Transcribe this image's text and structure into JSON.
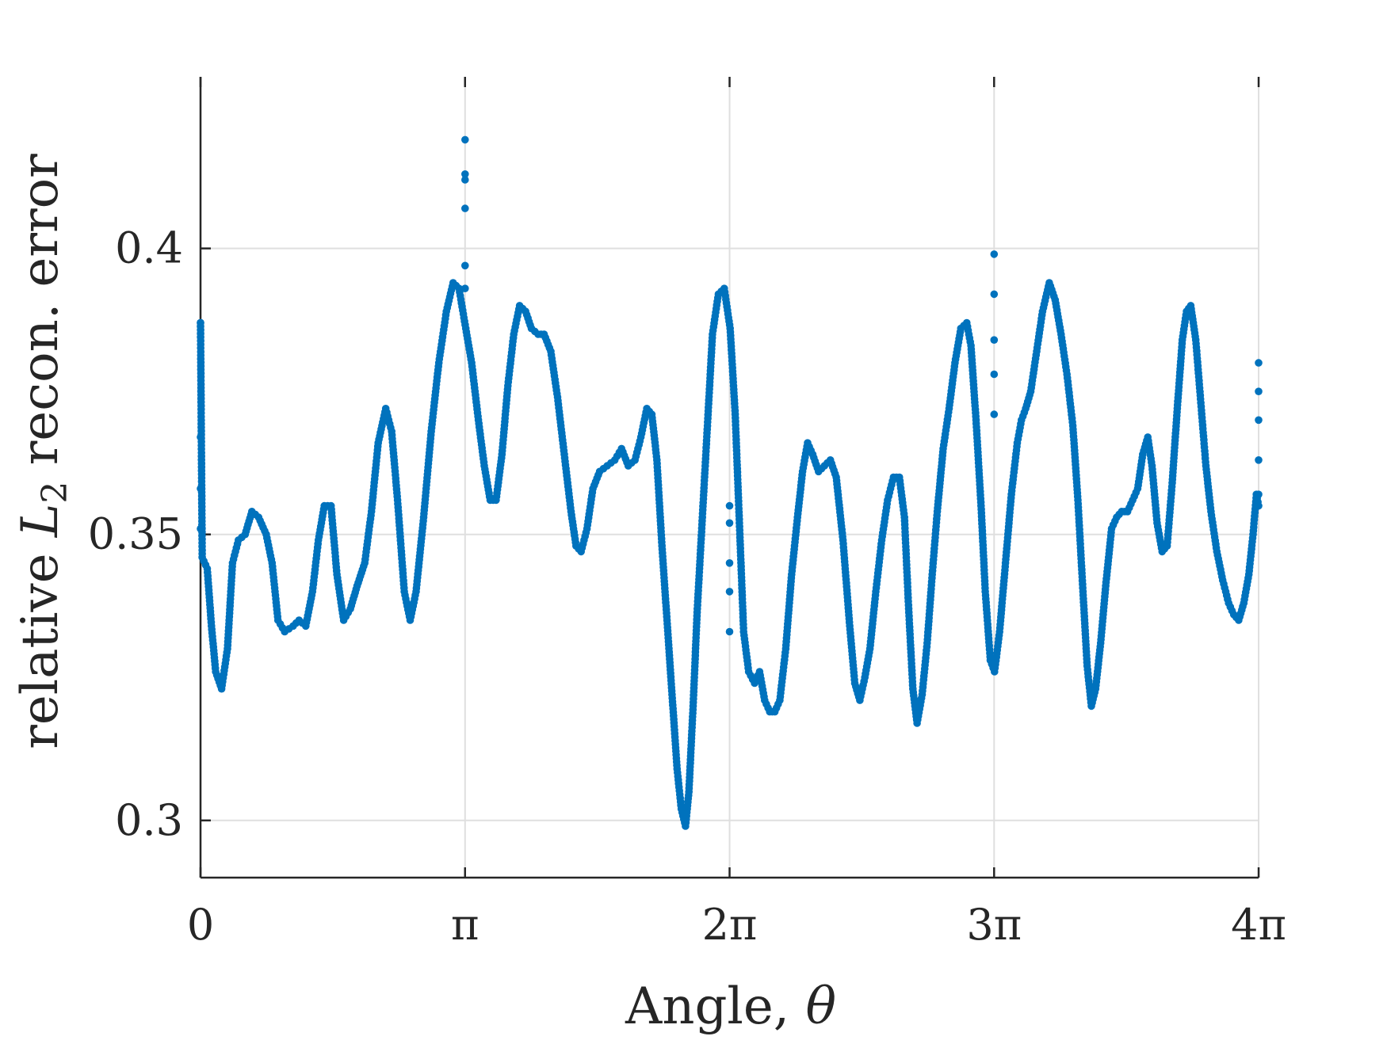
{
  "chart_data": {
    "type": "scatter",
    "xlabel": "Angle, θ",
    "ylabel": "relative L2 recon. error",
    "ylabel_parts": {
      "pre": "relative ",
      "var": "L",
      "sub": "2",
      "post": " recon. error"
    },
    "xlabel_parts": {
      "pre": "Angle, ",
      "var": "θ"
    },
    "xlim": [
      0,
      12.566
    ],
    "ylim": [
      0.29,
      0.43
    ],
    "xticks": [
      {
        "value": 0,
        "label": "0"
      },
      {
        "value": 3.1416,
        "label": "π"
      },
      {
        "value": 6.2832,
        "label": "2π"
      },
      {
        "value": 9.4248,
        "label": "3π"
      },
      {
        "value": 12.5664,
        "label": "4π"
      }
    ],
    "yticks": [
      {
        "value": 0.3,
        "label": "0.3"
      },
      {
        "value": 0.35,
        "label": "0.35"
      },
      {
        "value": 0.4,
        "label": "0.4"
      }
    ],
    "grid": true,
    "marker_color": "#0072BD",
    "series": [
      {
        "keypoints": [
          [
            0.0,
            0.387
          ],
          [
            0.02,
            0.346
          ],
          [
            0.08,
            0.344
          ],
          [
            0.13,
            0.334
          ],
          [
            0.18,
            0.326
          ],
          [
            0.25,
            0.323
          ],
          [
            0.32,
            0.33
          ],
          [
            0.38,
            0.345
          ],
          [
            0.45,
            0.349
          ],
          [
            0.53,
            0.35
          ],
          [
            0.61,
            0.354
          ],
          [
            0.69,
            0.353
          ],
          [
            0.78,
            0.35
          ],
          [
            0.85,
            0.345
          ],
          [
            0.92,
            0.335
          ],
          [
            1.0,
            0.333
          ],
          [
            1.1,
            0.334
          ],
          [
            1.17,
            0.335
          ],
          [
            1.25,
            0.334
          ],
          [
            1.33,
            0.34
          ],
          [
            1.4,
            0.349
          ],
          [
            1.47,
            0.355
          ],
          [
            1.55,
            0.355
          ],
          [
            1.62,
            0.343
          ],
          [
            1.7,
            0.335
          ],
          [
            1.78,
            0.337
          ],
          [
            1.86,
            0.341
          ],
          [
            1.95,
            0.345
          ],
          [
            2.03,
            0.354
          ],
          [
            2.11,
            0.366
          ],
          [
            2.2,
            0.372
          ],
          [
            2.27,
            0.368
          ],
          [
            2.34,
            0.356
          ],
          [
            2.42,
            0.34
          ],
          [
            2.49,
            0.335
          ],
          [
            2.56,
            0.34
          ],
          [
            2.65,
            0.353
          ],
          [
            2.74,
            0.368
          ],
          [
            2.83,
            0.38
          ],
          [
            2.92,
            0.389
          ],
          [
            3.0,
            0.394
          ],
          [
            3.07,
            0.393
          ],
          [
            3.15,
            0.386
          ],
          [
            3.22,
            0.38
          ],
          [
            3.3,
            0.37
          ],
          [
            3.37,
            0.362
          ],
          [
            3.44,
            0.356
          ],
          [
            3.51,
            0.356
          ],
          [
            3.58,
            0.364
          ],
          [
            3.65,
            0.376
          ],
          [
            3.72,
            0.385
          ],
          [
            3.79,
            0.39
          ],
          [
            3.86,
            0.389
          ],
          [
            3.93,
            0.386
          ],
          [
            4.01,
            0.385
          ],
          [
            4.08,
            0.385
          ],
          [
            4.16,
            0.382
          ],
          [
            4.24,
            0.374
          ],
          [
            4.32,
            0.364
          ],
          [
            4.4,
            0.354
          ],
          [
            4.46,
            0.348
          ],
          [
            4.52,
            0.347
          ],
          [
            4.59,
            0.351
          ],
          [
            4.66,
            0.358
          ],
          [
            4.74,
            0.361
          ],
          [
            4.83,
            0.362
          ],
          [
            4.92,
            0.363
          ],
          [
            5.0,
            0.365
          ],
          [
            5.08,
            0.362
          ],
          [
            5.16,
            0.363
          ],
          [
            5.23,
            0.367
          ],
          [
            5.3,
            0.372
          ],
          [
            5.36,
            0.371
          ],
          [
            5.42,
            0.363
          ],
          [
            5.48,
            0.348
          ],
          [
            5.54,
            0.335
          ],
          [
            5.6,
            0.322
          ],
          [
            5.66,
            0.309
          ],
          [
            5.71,
            0.302
          ],
          [
            5.76,
            0.299
          ],
          [
            5.8,
            0.305
          ],
          [
            5.85,
            0.32
          ],
          [
            5.9,
            0.337
          ],
          [
            5.96,
            0.353
          ],
          [
            6.02,
            0.369
          ],
          [
            6.08,
            0.385
          ],
          [
            6.15,
            0.392
          ],
          [
            6.22,
            0.393
          ],
          [
            6.29,
            0.386
          ],
          [
            6.35,
            0.371
          ],
          [
            6.4,
            0.352
          ],
          [
            6.45,
            0.333
          ],
          [
            6.51,
            0.326
          ],
          [
            6.58,
            0.324
          ],
          [
            6.64,
            0.326
          ],
          [
            6.7,
            0.321
          ],
          [
            6.76,
            0.319
          ],
          [
            6.82,
            0.319
          ],
          [
            6.88,
            0.321
          ],
          [
            6.95,
            0.33
          ],
          [
            7.02,
            0.343
          ],
          [
            7.09,
            0.353
          ],
          [
            7.15,
            0.361
          ],
          [
            7.21,
            0.366
          ],
          [
            7.27,
            0.364
          ],
          [
            7.34,
            0.361
          ],
          [
            7.41,
            0.362
          ],
          [
            7.48,
            0.363
          ],
          [
            7.55,
            0.36
          ],
          [
            7.63,
            0.349
          ],
          [
            7.71,
            0.334
          ],
          [
            7.77,
            0.324
          ],
          [
            7.83,
            0.321
          ],
          [
            7.89,
            0.325
          ],
          [
            7.95,
            0.33
          ],
          [
            8.02,
            0.34
          ],
          [
            8.09,
            0.349
          ],
          [
            8.16,
            0.356
          ],
          [
            8.23,
            0.36
          ],
          [
            8.3,
            0.36
          ],
          [
            8.36,
            0.353
          ],
          [
            8.41,
            0.337
          ],
          [
            8.46,
            0.323
          ],
          [
            8.51,
            0.317
          ],
          [
            8.57,
            0.322
          ],
          [
            8.63,
            0.331
          ],
          [
            8.69,
            0.343
          ],
          [
            8.75,
            0.354
          ],
          [
            8.82,
            0.365
          ],
          [
            8.89,
            0.372
          ],
          [
            8.96,
            0.38
          ],
          [
            9.03,
            0.386
          ],
          [
            9.1,
            0.387
          ],
          [
            9.15,
            0.383
          ],
          [
            9.21,
            0.37
          ],
          [
            9.27,
            0.355
          ],
          [
            9.32,
            0.34
          ],
          [
            9.38,
            0.328
          ],
          [
            9.43,
            0.326
          ],
          [
            9.49,
            0.333
          ],
          [
            9.56,
            0.345
          ],
          [
            9.63,
            0.357
          ],
          [
            9.7,
            0.366
          ],
          [
            9.75,
            0.37
          ],
          [
            9.8,
            0.372
          ],
          [
            9.86,
            0.375
          ],
          [
            9.93,
            0.382
          ],
          [
            10.0,
            0.389
          ],
          [
            10.08,
            0.394
          ],
          [
            10.15,
            0.391
          ],
          [
            10.22,
            0.385
          ],
          [
            10.29,
            0.378
          ],
          [
            10.36,
            0.369
          ],
          [
            10.42,
            0.356
          ],
          [
            10.48,
            0.34
          ],
          [
            10.53,
            0.327
          ],
          [
            10.58,
            0.32
          ],
          [
            10.63,
            0.323
          ],
          [
            10.69,
            0.331
          ],
          [
            10.75,
            0.341
          ],
          [
            10.82,
            0.351
          ],
          [
            10.88,
            0.353
          ],
          [
            10.94,
            0.354
          ],
          [
            11.01,
            0.354
          ],
          [
            11.07,
            0.356
          ],
          [
            11.13,
            0.358
          ],
          [
            11.19,
            0.364
          ],
          [
            11.25,
            0.367
          ],
          [
            11.3,
            0.362
          ],
          [
            11.36,
            0.352
          ],
          [
            11.42,
            0.347
          ],
          [
            11.48,
            0.348
          ],
          [
            11.54,
            0.359
          ],
          [
            11.6,
            0.372
          ],
          [
            11.66,
            0.384
          ],
          [
            11.71,
            0.389
          ],
          [
            11.76,
            0.39
          ],
          [
            11.82,
            0.384
          ],
          [
            11.88,
            0.373
          ],
          [
            11.94,
            0.362
          ],
          [
            12.0,
            0.354
          ],
          [
            12.07,
            0.347
          ],
          [
            12.14,
            0.342
          ],
          [
            12.21,
            0.338
          ],
          [
            12.27,
            0.336
          ],
          [
            12.33,
            0.335
          ],
          [
            12.39,
            0.338
          ],
          [
            12.45,
            0.343
          ],
          [
            12.5,
            0.35
          ],
          [
            12.54,
            0.357
          ],
          [
            12.566,
            0.355
          ]
        ],
        "outliers": [
          [
            0.0,
            0.387
          ],
          [
            0.0,
            0.367
          ],
          [
            0.0,
            0.358
          ],
          [
            0.0,
            0.351
          ],
          [
            3.142,
            0.419
          ],
          [
            3.142,
            0.413
          ],
          [
            3.142,
            0.412
          ],
          [
            3.142,
            0.407
          ],
          [
            3.142,
            0.397
          ],
          [
            3.142,
            0.393
          ],
          [
            6.283,
            0.355
          ],
          [
            6.283,
            0.352
          ],
          [
            6.283,
            0.345
          ],
          [
            6.283,
            0.34
          ],
          [
            6.283,
            0.333
          ],
          [
            9.425,
            0.399
          ],
          [
            9.425,
            0.392
          ],
          [
            9.425,
            0.384
          ],
          [
            9.425,
            0.378
          ],
          [
            9.425,
            0.371
          ],
          [
            12.566,
            0.38
          ],
          [
            12.566,
            0.375
          ],
          [
            12.566,
            0.37
          ],
          [
            12.566,
            0.363
          ],
          [
            12.566,
            0.357
          ]
        ]
      }
    ]
  }
}
